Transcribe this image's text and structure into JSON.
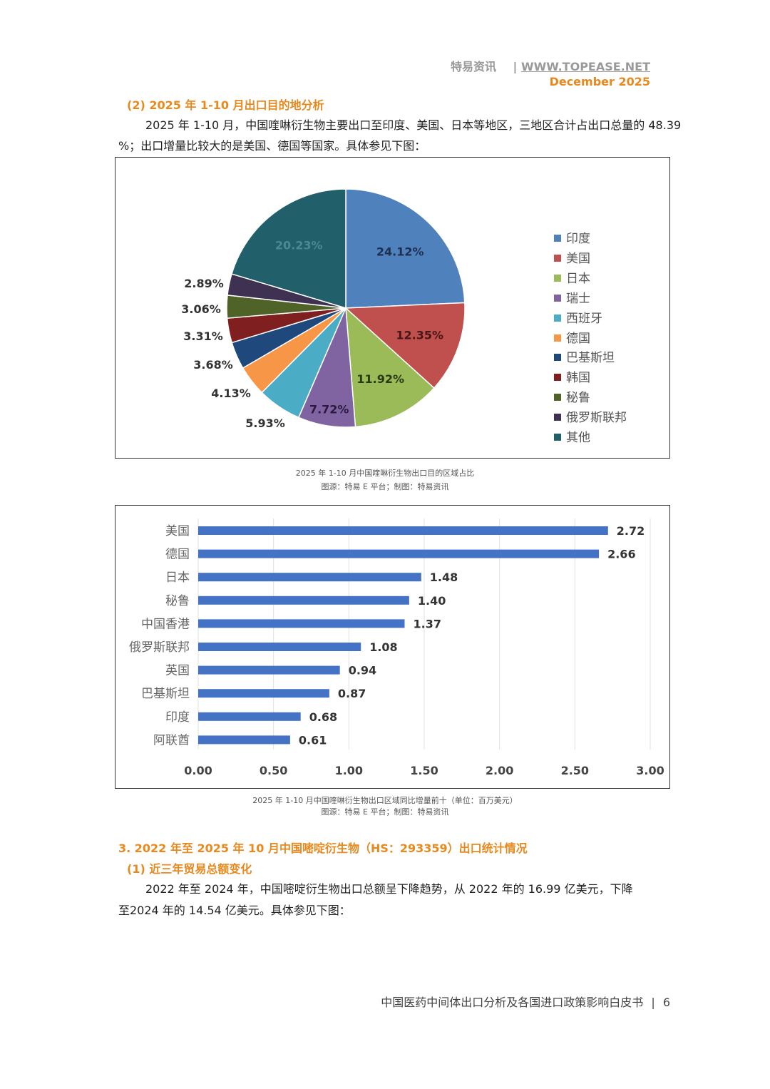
{
  "header": {
    "brand": "特易资讯",
    "separator": "|",
    "url": "WWW.TOPEASE.NET",
    "date": "December 2025"
  },
  "section1": {
    "heading": "(2) 2025 年 1-10 月出口目的地分析",
    "paragraph_line1": "2025 年 1-10 月，中国喹啉衍生物主要出口至印度、美国、日本等地区，三地区合计占出口总量的 48.39",
    "paragraph_line2": "%；出口增量比较大的是美国、德国等国家。具体参见下图："
  },
  "pie_caption": {
    "title": "2025 年 1-10 月中国喹啉衍生物出口目的区域占比",
    "source": "图源：特易 E 平台；制图：特易资讯"
  },
  "bar_caption": {
    "title": "2025 年 1-10 月中国喹啉衍生物出口区域同比增量前十（单位：百万美元）",
    "source": "图源：特易 E 平台；制图：特易资讯"
  },
  "section2": {
    "heading": "3. 2022 年至 2025 年 10 月中国嘧啶衍生物（HS：293359）出口统计情况",
    "subheading": "(1) 近三年贸易总额变化",
    "paragraph_line1": "2022 年至 2024 年，中国嘧啶衍生物出口总额呈下降趋势，从 2022 年的 16.99 亿美元，下降",
    "paragraph_line2": "至2024 年的 14.54 亿美元。具体参见下图："
  },
  "footer": {
    "title": "中国医药中间体出口分析及各国进口政策影响白皮书",
    "separator": "|",
    "page": "6"
  },
  "chart_data": [
    {
      "type": "pie",
      "categories": [
        "印度",
        "美国",
        "日本",
        "瑞士",
        "西班牙",
        "德国",
        "巴基斯坦",
        "韩国",
        "秘鲁",
        "俄罗斯联邦",
        "其他"
      ],
      "values": [
        24.12,
        12.35,
        11.92,
        7.72,
        5.93,
        4.13,
        3.68,
        3.31,
        3.06,
        2.89,
        20.23
      ],
      "labels": [
        "24.12%",
        "12.35%",
        "11.92%",
        "7.72%",
        "5.93%",
        "4.13%",
        "3.68%",
        "3.31%",
        "3.06%",
        "2.89%",
        "20.23%"
      ],
      "colors": [
        "#4F81BD",
        "#C0504D",
        "#9BBB59",
        "#8064A2",
        "#4BACC6",
        "#F79646",
        "#1F497D",
        "#7F1F1F",
        "#4F6228",
        "#3F3151",
        "#215F6B"
      ],
      "legend_position": "right"
    },
    {
      "type": "bar",
      "orientation": "horizontal",
      "categories": [
        "美国",
        "德国",
        "日本",
        "秘鲁",
        "中国香港",
        "俄罗斯联邦",
        "英国",
        "巴基斯坦",
        "印度",
        "阿联酋"
      ],
      "values": [
        2.72,
        2.66,
        1.48,
        1.4,
        1.37,
        1.08,
        0.94,
        0.87,
        0.68,
        0.61
      ],
      "value_labels": [
        "2.72",
        "2.66",
        "1.48",
        "1.40",
        "1.37",
        "1.08",
        "0.94",
        "0.87",
        "0.68",
        "0.61"
      ],
      "xlim": [
        0,
        3
      ],
      "xticks": [
        "0.00",
        "0.50",
        "1.00",
        "1.50",
        "2.00",
        "2.50",
        "3.00"
      ],
      "color": "#4472C4",
      "grid": "vertical"
    }
  ]
}
